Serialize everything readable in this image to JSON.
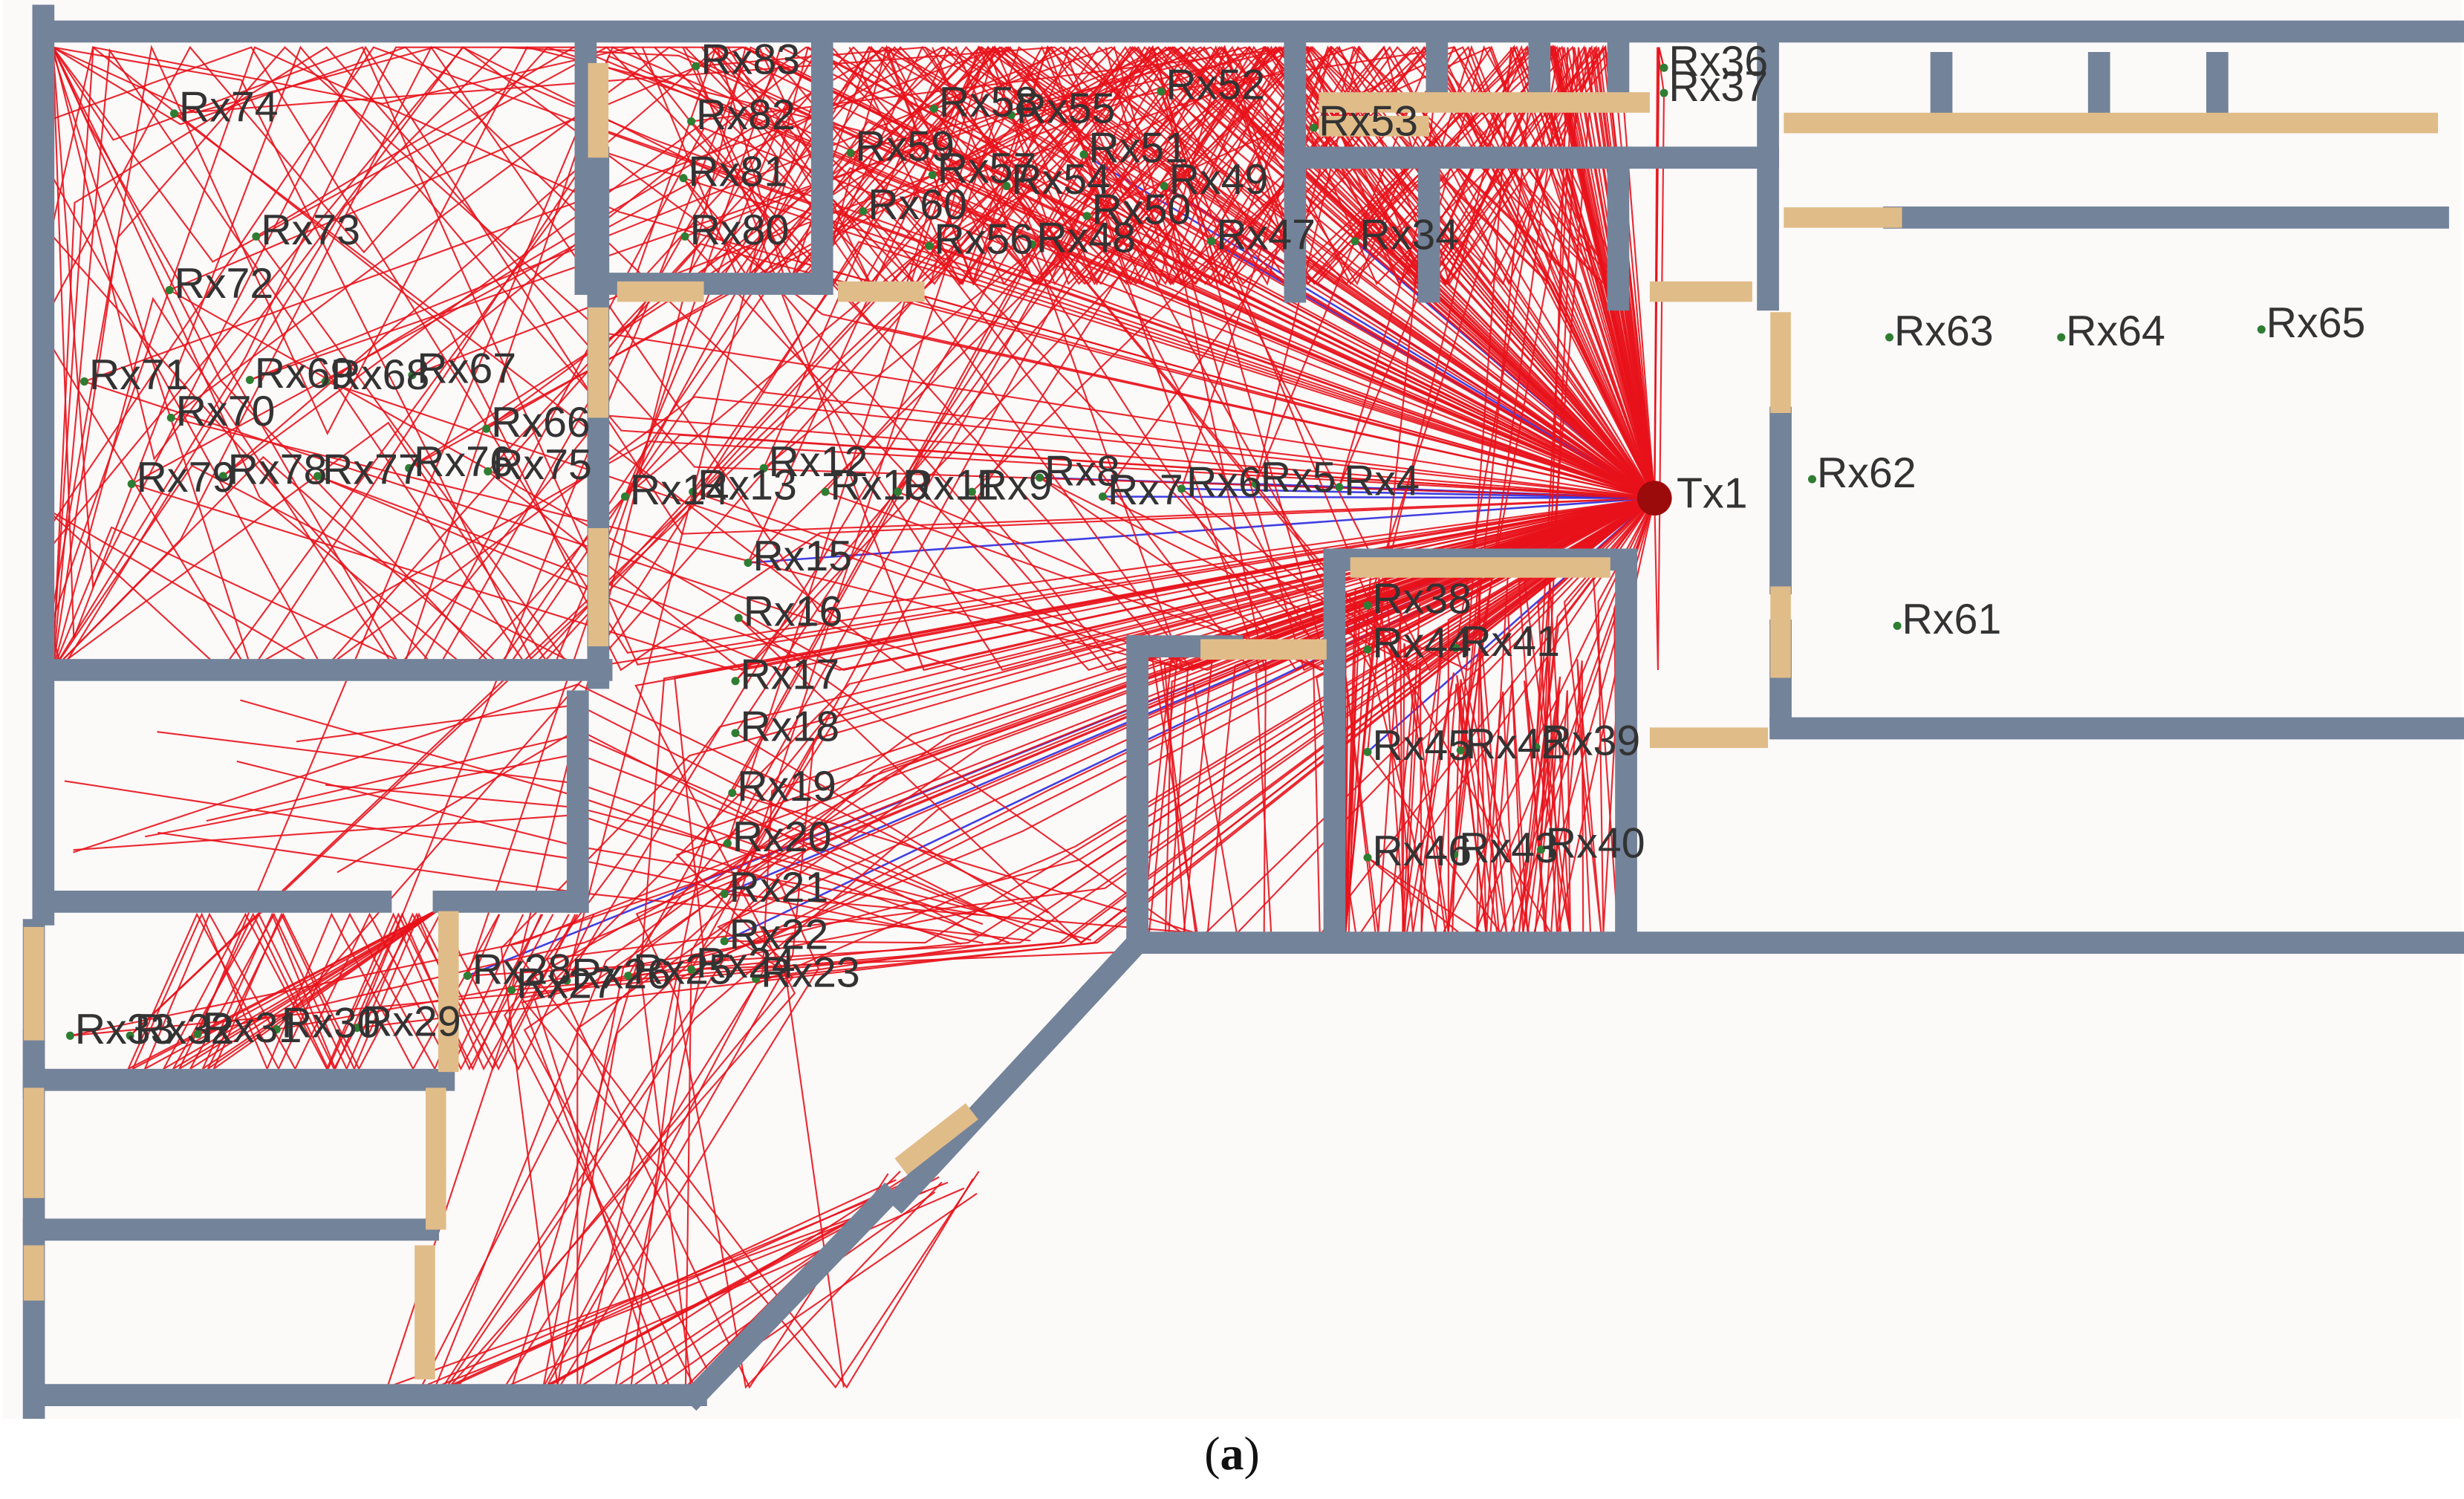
{
  "figure": {
    "caption_letter": "a",
    "colors": {
      "background": "#fcf9f9",
      "wall": "#73839a",
      "door": "#e0bc88",
      "ray_reflected": "#e8121b",
      "ray_direct": "#2a2ae0",
      "receiver": "#2e7d32",
      "transmitter": "#9b0b0b"
    },
    "transmitter": {
      "label": "Tx1",
      "icon": "transmitter-dot-icon"
    },
    "receivers": [
      "Rx4",
      "Rx5",
      "Rx6",
      "Rx7",
      "Rx8",
      "Rx9",
      "Rx10",
      "Rx11",
      "Rx12",
      "Rx13",
      "Rx14",
      "Rx15",
      "Rx16",
      "Rx17",
      "Rx18",
      "Rx19",
      "Rx20",
      "Rx21",
      "Rx22",
      "Rx23",
      "Rx24",
      "Rx25",
      "Rx26",
      "Rx27",
      "Rx28",
      "Rx29",
      "Rx30",
      "Rx31",
      "Rx32",
      "Rx33",
      "Rx34",
      "Rx36",
      "Rx37",
      "Rx38",
      "Rx39",
      "Rx40",
      "Rx41",
      "Rx42",
      "Rx43",
      "Rx44",
      "Rx45",
      "Rx46",
      "Rx47",
      "Rx48",
      "Rx49",
      "Rx50",
      "Rx51",
      "Rx52",
      "Rx53",
      "Rx54",
      "Rx55",
      "Rx56",
      "Rx57",
      "Rx58",
      "Rx59",
      "Rx60",
      "Rx61",
      "Rx62",
      "Rx63",
      "Rx64",
      "Rx65",
      "Rx66",
      "Rx67",
      "Rx68",
      "Rx69",
      "Rx70",
      "Rx71",
      "Rx72",
      "Rx73",
      "Rx74",
      "Rx75",
      "Rx76",
      "Rx77",
      "Rx78",
      "Rx79",
      "Rx80",
      "Rx81",
      "Rx82",
      "Rx83"
    ]
  }
}
